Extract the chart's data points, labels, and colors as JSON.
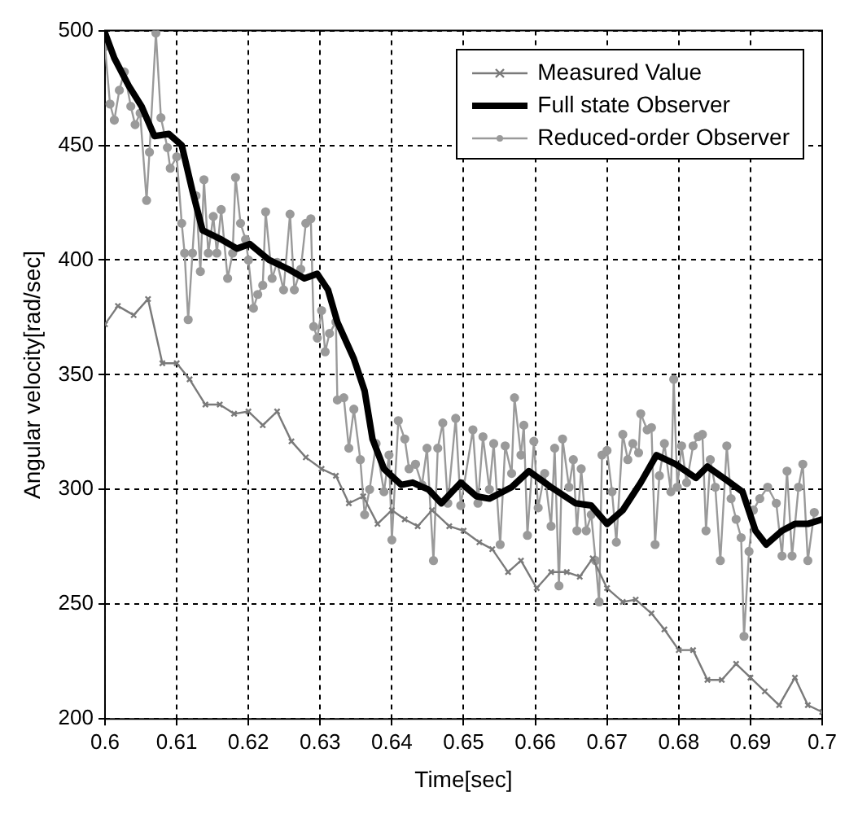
{
  "chart_data": {
    "type": "line",
    "xlabel": "Time[sec]",
    "ylabel": "Angular velocity[rad/sec]",
    "xlim": [
      0.6,
      0.7
    ],
    "xticks": [
      0.6,
      0.61,
      0.62,
      0.63,
      0.64,
      0.65,
      0.66,
      0.67,
      0.68,
      0.69,
      0.7
    ],
    "ylim": [
      200,
      500
    ],
    "yticks": [
      200,
      250,
      300,
      350,
      400,
      450,
      500
    ],
    "grid": true,
    "legend": "top right",
    "series": [
      {
        "name": "Measured Value",
        "color": "#7a7a7a",
        "marker": "cross",
        "x": [
          0.6,
          0.6018,
          0.604,
          0.606,
          0.608,
          0.61,
          0.6118,
          0.614,
          0.616,
          0.618,
          0.62,
          0.622,
          0.624,
          0.626,
          0.628,
          0.6302,
          0.6322,
          0.634,
          0.636,
          0.638,
          0.64,
          0.6418,
          0.6436,
          0.6456,
          0.648,
          0.65,
          0.6522,
          0.654,
          0.6562,
          0.658,
          0.6602,
          0.6622,
          0.6644,
          0.6662,
          0.668,
          0.67,
          0.6722,
          0.674,
          0.6762,
          0.678,
          0.68,
          0.682,
          0.684,
          0.686,
          0.688,
          0.69,
          0.692,
          0.694,
          0.6962,
          0.698,
          0.7
        ],
        "values": [
          372,
          380,
          376,
          383,
          355,
          355,
          348,
          337,
          337,
          333,
          334,
          328,
          334,
          321,
          314,
          309,
          306,
          294,
          297,
          285,
          291,
          287,
          284,
          291,
          284,
          282,
          277,
          274,
          264,
          269,
          257,
          264,
          264,
          262,
          270,
          257,
          251,
          252,
          246,
          239,
          230,
          230,
          217,
          217,
          224,
          218,
          212,
          206,
          218,
          206,
          203
        ]
      },
      {
        "name": "Full state Observer",
        "color": "#000000",
        "marker": "none",
        "x": [
          0.6,
          0.6013,
          0.6033,
          0.6051,
          0.6069,
          0.6089,
          0.6107,
          0.6122,
          0.6136,
          0.6162,
          0.6184,
          0.6202,
          0.6229,
          0.6256,
          0.6278,
          0.6296,
          0.6311,
          0.6324,
          0.6347,
          0.6362,
          0.6373,
          0.6389,
          0.6413,
          0.6429,
          0.6451,
          0.6469,
          0.6496,
          0.6518,
          0.6536,
          0.6567,
          0.6591,
          0.6622,
          0.6656,
          0.6678,
          0.67,
          0.6722,
          0.6747,
          0.6769,
          0.6796,
          0.6824,
          0.684,
          0.6867,
          0.6889,
          0.6907,
          0.6922,
          0.6944,
          0.6962,
          0.698,
          0.7
        ],
        "values": [
          499,
          488,
          476,
          467,
          454,
          455,
          450,
          430,
          413,
          409,
          405,
          407,
          400,
          396,
          392,
          394,
          387,
          373,
          357,
          343,
          322,
          309,
          302,
          303,
          300,
          294,
          303,
          297,
          296,
          301,
          308,
          301,
          294,
          293,
          285,
          291,
          303,
          315,
          311,
          305,
          310,
          304,
          299,
          282,
          276,
          282,
          285,
          285,
          287
        ]
      },
      {
        "name": "Reduced-order Observer",
        "color": "#9a9a9a",
        "marker": "circle",
        "x": [
          0.6,
          0.6007,
          0.6013,
          0.602,
          0.6027,
          0.6036,
          0.6042,
          0.6049,
          0.6058,
          0.6062,
          0.6071,
          0.6078,
          0.6087,
          0.6091,
          0.61,
          0.6107,
          0.6111,
          0.6116,
          0.6122,
          0.6127,
          0.6133,
          0.6138,
          0.6144,
          0.6151,
          0.6156,
          0.6162,
          0.6171,
          0.6178,
          0.6182,
          0.6189,
          0.6196,
          0.62,
          0.6207,
          0.6213,
          0.622,
          0.6224,
          0.6233,
          0.624,
          0.6249,
          0.6258,
          0.6264,
          0.6273,
          0.628,
          0.6287,
          0.6291,
          0.6296,
          0.6302,
          0.6307,
          0.6313,
          0.6322,
          0.6324,
          0.6333,
          0.634,
          0.6347,
          0.6356,
          0.6362,
          0.6369,
          0.6378,
          0.6389,
          0.6396,
          0.64,
          0.6409,
          0.6418,
          0.6424,
          0.6433,
          0.6442,
          0.6449,
          0.6458,
          0.6464,
          0.6471,
          0.6478,
          0.6489,
          0.6496,
          0.6513,
          0.652,
          0.6527,
          0.6536,
          0.6542,
          0.6551,
          0.6558,
          0.6567,
          0.6571,
          0.658,
          0.6584,
          0.6589,
          0.6598,
          0.6604,
          0.6613,
          0.6622,
          0.6627,
          0.6633,
          0.6638,
          0.6647,
          0.6653,
          0.6658,
          0.6664,
          0.6671,
          0.6678,
          0.6684,
          0.6689,
          0.6693,
          0.67,
          0.6707,
          0.6713,
          0.6722,
          0.6729,
          0.6736,
          0.6744,
          0.6747,
          0.6756,
          0.6762,
          0.6767,
          0.6773,
          0.678,
          0.6789,
          0.6793,
          0.6798,
          0.6804,
          0.6811,
          0.682,
          0.6827,
          0.6833,
          0.6838,
          0.6844,
          0.6851,
          0.6858,
          0.6867,
          0.6873,
          0.688,
          0.6887,
          0.6891,
          0.6898,
          0.6904,
          0.6913,
          0.6924,
          0.6936,
          0.6944,
          0.6951,
          0.6958,
          0.6967,
          0.6973,
          0.698,
          0.6989
        ],
        "values": [
          493,
          468,
          461,
          474,
          482,
          467,
          459,
          464,
          426,
          447,
          499,
          462,
          449,
          440,
          445,
          416,
          403,
          374,
          403,
          428,
          395,
          435,
          403,
          419,
          403,
          422,
          392,
          403,
          436,
          416,
          409,
          400,
          379,
          385,
          389,
          421,
          392,
          399,
          387,
          420,
          387,
          396,
          416,
          418,
          371,
          366,
          378,
          360,
          368,
          373,
          339,
          340,
          318,
          335,
          313,
          289,
          300,
          320,
          299,
          315,
          278,
          330,
          322,
          309,
          311,
          302,
          318,
          269,
          318,
          329,
          294,
          331,
          293,
          326,
          294,
          323,
          300,
          320,
          276,
          319,
          307,
          340,
          315,
          328,
          280,
          321,
          292,
          307,
          284,
          318,
          258,
          322,
          301,
          313,
          282,
          309,
          282,
          289,
          269,
          251,
          315,
          317,
          299,
          277,
          324,
          313,
          320,
          316,
          333,
          326,
          327,
          276,
          306,
          320,
          299,
          348,
          301,
          319,
          303,
          319,
          323,
          324,
          282,
          313,
          301,
          269,
          319,
          296,
          287,
          279,
          236,
          273,
          291,
          296,
          301,
          294,
          271,
          308,
          271,
          301,
          311,
          269,
          290
        ]
      }
    ]
  }
}
